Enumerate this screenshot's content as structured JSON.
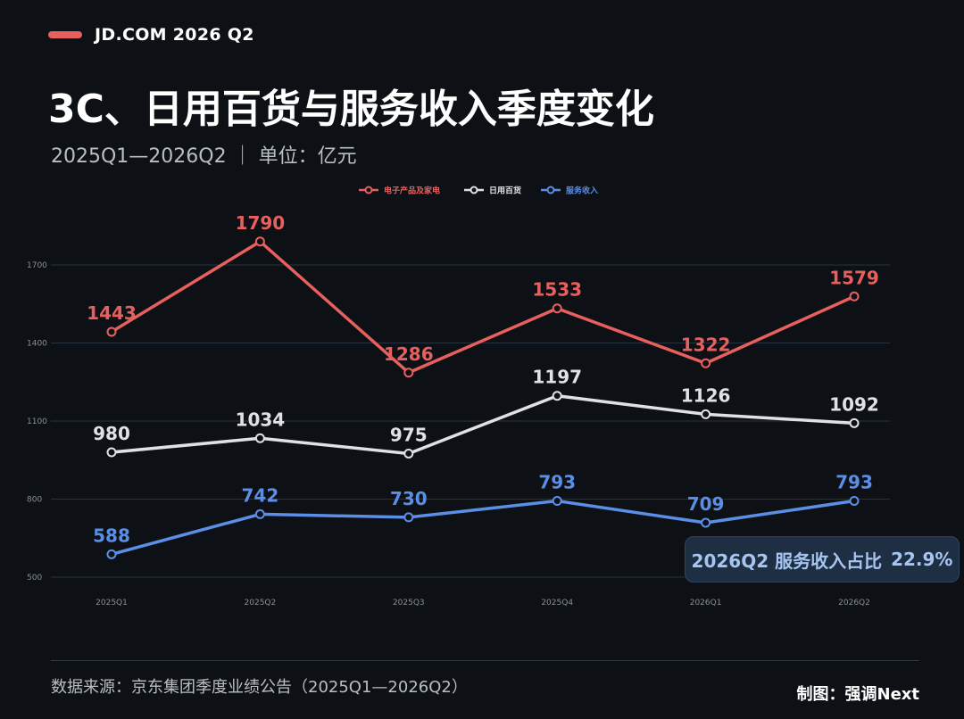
{
  "brand": {
    "text": "JD.COM 2026 Q2",
    "color": "#e8605e"
  },
  "header": {
    "title": "3C、日用百货与服务收入季度变化",
    "subtitle": "2025Q1—2026Q2 ｜ 单位：亿元"
  },
  "callout": {
    "label": "2026Q2 服务收入占比",
    "value": "22.9%"
  },
  "footer": {
    "source": "数据来源：京东集团季度业绩公告（2025Q1—2026Q2）",
    "credit": "制图：强调Next"
  },
  "chart_data": {
    "type": "line",
    "title": "",
    "xlabel": "",
    "ylabel": "",
    "categories": [
      "2025Q1",
      "2025Q2",
      "2025Q3",
      "2025Q4",
      "2026Q1",
      "2026Q2"
    ],
    "yticks": [
      500,
      800,
      1100,
      1400,
      1700
    ],
    "ylim": [
      465,
      1870
    ],
    "grid": true,
    "legend_position": "top-center",
    "series": [
      {
        "name": "电子产品及家电",
        "color": "#e8605e",
        "values": [
          1443,
          1790,
          1286,
          1533,
          1322,
          1579
        ]
      },
      {
        "name": "日用百货",
        "color": "#dfe1e4",
        "values": [
          980,
          1034,
          975,
          1197,
          1126,
          1092
        ]
      },
      {
        "name": "服务收入",
        "color": "#5b8ee6",
        "values": [
          588,
          742,
          730,
          793,
          709,
          793
        ]
      }
    ]
  }
}
